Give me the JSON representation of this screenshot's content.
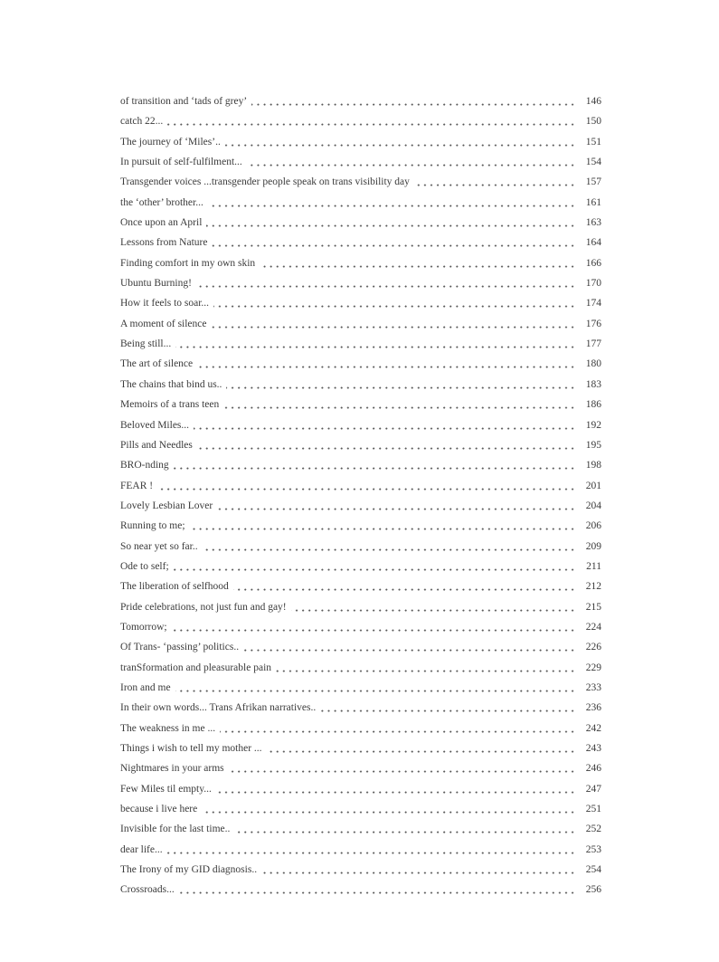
{
  "document": {
    "kind": "table-of-contents-continuation-page",
    "background_color": "#ffffff",
    "text_color": "#3b3b3b",
    "entries": [
      {
        "title": "of transition and ‘tads of grey’",
        "page": "146"
      },
      {
        "title": "catch 22...",
        "page": "150"
      },
      {
        "title": "The journey of ‘Miles’..",
        "page": "151"
      },
      {
        "title": "In pursuit of self-fulfilment...",
        "page": "154"
      },
      {
        "title": "Transgender voices ...transgender people speak on trans visibility day",
        "page": "157"
      },
      {
        "title": "the ‘other’ brother...",
        "page": "161"
      },
      {
        "title": "Once upon an April",
        "page": "163"
      },
      {
        "title": "Lessons from Nature",
        "page": "164"
      },
      {
        "title": "Finding comfort in my own skin",
        "page": "166"
      },
      {
        "title": "Ubuntu Burning!",
        "page": "170"
      },
      {
        "title": "How it feels to soar...",
        "page": "174"
      },
      {
        "title": "A moment of silence",
        "page": "176"
      },
      {
        "title": "Being still...",
        "page": "177"
      },
      {
        "title": "The art of silence",
        "page": "180"
      },
      {
        "title": "The chains that bind us..",
        "page": "183"
      },
      {
        "title": "Memoirs of a trans teen",
        "page": "186"
      },
      {
        "title": "Beloved Miles...",
        "page": "192"
      },
      {
        "title": "Pills and Needles",
        "page": "195"
      },
      {
        "title": "BRO-nding",
        "page": "198"
      },
      {
        "title": "FEAR !",
        "page": "201"
      },
      {
        "title": "Lovely Lesbian Lover",
        "page": "204"
      },
      {
        "title": "Running to me;",
        "page": "206"
      },
      {
        "title": "So near yet so far..",
        "page": "209"
      },
      {
        "title": "Ode to self;",
        "page": "211"
      },
      {
        "title": "The liberation of selfhood",
        "page": "212"
      },
      {
        "title": "Pride celebrations, not just fun and gay!",
        "page": "215"
      },
      {
        "title": "Tomorrow;",
        "page": "224"
      },
      {
        "title": "Of Trans- ‘passing’ politics..",
        "page": "226"
      },
      {
        "title": "tranSformation and pleasurable pain",
        "page": "229"
      },
      {
        "title": "Iron and me",
        "page": "233"
      },
      {
        "title": "In their own words... Trans Afrikan narratives..",
        "page": "236"
      },
      {
        "title": "The weakness in me ...",
        "page": "242"
      },
      {
        "title": "Things i wish to tell my mother ...",
        "page": "243"
      },
      {
        "title": "Nightmares in your arms",
        "page": "246"
      },
      {
        "title": "Few Miles til empty...",
        "page": "247"
      },
      {
        "title": "because i live here",
        "page": "251"
      },
      {
        "title": "Invisible for the last time..",
        "page": "252"
      },
      {
        "title": "dear life...",
        "page": "253"
      },
      {
        "title": "The Irony of my GID diagnosis..",
        "page": "254"
      },
      {
        "title": "Crossroads...",
        "page": "256"
      }
    ]
  }
}
